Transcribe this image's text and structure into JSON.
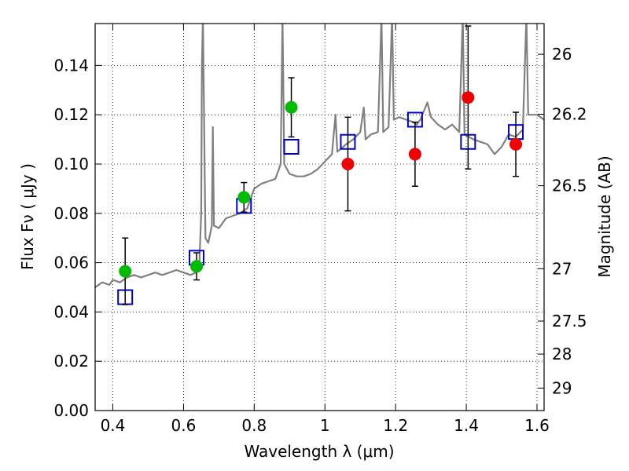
{
  "chart_data": {
    "type": "scatter",
    "title": "",
    "xlabel": "Wavelength  λ (μm)",
    "ylabel": "Flux  Fν  ( μJy )",
    "ylabel_right": "Magnitude (AB)",
    "xlim": [
      0.35,
      1.62
    ],
    "ylim": [
      0.0,
      0.157
    ],
    "grid": true,
    "x_ticks": [
      0.4,
      0.6,
      0.8,
      1.0,
      1.2,
      1.4,
      1.6
    ],
    "x_tick_labels": [
      "0.4",
      "0.6",
      "0.8",
      "1",
      "1.2",
      "1.4",
      "1.6"
    ],
    "y_ticks": [
      0.0,
      0.02,
      0.04,
      0.06,
      0.08,
      0.1,
      0.12,
      0.14
    ],
    "y_tick_labels": [
      "0.00",
      "0.02",
      "0.04",
      "0.06",
      "0.08",
      "0.10",
      "0.12",
      "0.14"
    ],
    "right_axis_ticks": [
      {
        "label": "26",
        "mag": 26.0
      },
      {
        "label": "26.2",
        "mag": 26.2
      },
      {
        "label": "26.5",
        "mag": 26.5
      },
      {
        "label": "27",
        "mag": 27.0
      },
      {
        "label": "27.5",
        "mag": 27.5
      },
      {
        "label": "28",
        "mag": 28.0
      },
      {
        "label": "29",
        "mag": 29.0
      }
    ],
    "series": [
      {
        "color": "#808080",
        "style": "line",
        "points": [
          [
            0.35,
            0.05
          ],
          [
            0.37,
            0.052
          ],
          [
            0.39,
            0.051
          ],
          [
            0.4,
            0.053
          ],
          [
            0.42,
            0.052
          ],
          [
            0.44,
            0.054
          ],
          [
            0.46,
            0.055
          ],
          [
            0.48,
            0.054
          ],
          [
            0.5,
            0.055
          ],
          [
            0.52,
            0.056
          ],
          [
            0.54,
            0.055
          ],
          [
            0.56,
            0.056
          ],
          [
            0.58,
            0.057
          ],
          [
            0.6,
            0.056
          ],
          [
            0.62,
            0.055
          ],
          [
            0.635,
            0.056
          ],
          [
            0.645,
            0.06
          ],
          [
            0.65,
            0.08
          ],
          [
            0.652,
            0.14
          ],
          [
            0.655,
            0.16
          ],
          [
            0.658,
            0.12
          ],
          [
            0.662,
            0.07
          ],
          [
            0.67,
            0.068
          ],
          [
            0.68,
            0.075
          ],
          [
            0.683,
            0.115
          ],
          [
            0.686,
            0.075
          ],
          [
            0.7,
            0.074
          ],
          [
            0.72,
            0.078
          ],
          [
            0.74,
            0.079
          ],
          [
            0.76,
            0.08
          ],
          [
            0.78,
            0.082
          ],
          [
            0.8,
            0.09
          ],
          [
            0.82,
            0.092
          ],
          [
            0.84,
            0.093
          ],
          [
            0.86,
            0.094
          ],
          [
            0.875,
            0.1
          ],
          [
            0.88,
            0.16
          ],
          [
            0.885,
            0.1
          ],
          [
            0.9,
            0.096
          ],
          [
            0.92,
            0.095
          ],
          [
            0.94,
            0.095
          ],
          [
            0.96,
            0.096
          ],
          [
            0.98,
            0.098
          ],
          [
            1.0,
            0.101
          ],
          [
            1.02,
            0.104
          ],
          [
            1.03,
            0.12
          ],
          [
            1.035,
            0.105
          ],
          [
            1.06,
            0.108
          ],
          [
            1.08,
            0.11
          ],
          [
            1.1,
            0.113
          ],
          [
            1.11,
            0.123
          ],
          [
            1.115,
            0.11
          ],
          [
            1.13,
            0.112
          ],
          [
            1.15,
            0.113
          ],
          [
            1.16,
            0.16
          ],
          [
            1.165,
            0.113
          ],
          [
            1.18,
            0.115
          ],
          [
            1.19,
            0.16
          ],
          [
            1.195,
            0.118
          ],
          [
            1.21,
            0.119
          ],
          [
            1.23,
            0.118
          ],
          [
            1.25,
            0.117
          ],
          [
            1.26,
            0.116
          ],
          [
            1.27,
            0.118
          ],
          [
            1.29,
            0.125
          ],
          [
            1.3,
            0.119
          ],
          [
            1.32,
            0.116
          ],
          [
            1.34,
            0.114
          ],
          [
            1.36,
            0.116
          ],
          [
            1.38,
            0.113
          ],
          [
            1.39,
            0.16
          ],
          [
            1.395,
            0.112
          ],
          [
            1.42,
            0.11
          ],
          [
            1.44,
            0.109
          ],
          [
            1.46,
            0.108
          ],
          [
            1.48,
            0.104
          ],
          [
            1.5,
            0.107
          ],
          [
            1.52,
            0.112
          ],
          [
            1.54,
            0.111
          ],
          [
            1.56,
            0.114
          ],
          [
            1.57,
            0.16
          ],
          [
            1.575,
            0.12
          ],
          [
            1.6,
            0.12
          ],
          [
            1.62,
            0.118
          ]
        ]
      },
      {
        "color": "#0000cc",
        "style": "open-square",
        "points": [
          [
            0.435,
            0.046
          ],
          [
            0.637,
            0.062
          ],
          [
            0.771,
            0.083
          ],
          [
            0.905,
            0.107
          ],
          [
            1.065,
            0.109
          ],
          [
            1.255,
            0.118
          ],
          [
            1.405,
            0.109
          ],
          [
            1.54,
            0.113
          ]
        ]
      },
      {
        "color": "#00bb00",
        "style": "circle",
        "points": [
          [
            0.435,
            0.0565,
            0.0135
          ],
          [
            0.637,
            0.0585,
            0.0055
          ],
          [
            0.771,
            0.0865,
            0.006
          ],
          [
            0.905,
            0.123,
            0.012
          ]
        ]
      },
      {
        "color": "#ee0000",
        "style": "circle",
        "points": [
          [
            1.065,
            0.1,
            0.019
          ],
          [
            1.255,
            0.104,
            0.013
          ],
          [
            1.405,
            0.127,
            0.029
          ],
          [
            1.54,
            0.108,
            0.013
          ]
        ]
      }
    ]
  }
}
